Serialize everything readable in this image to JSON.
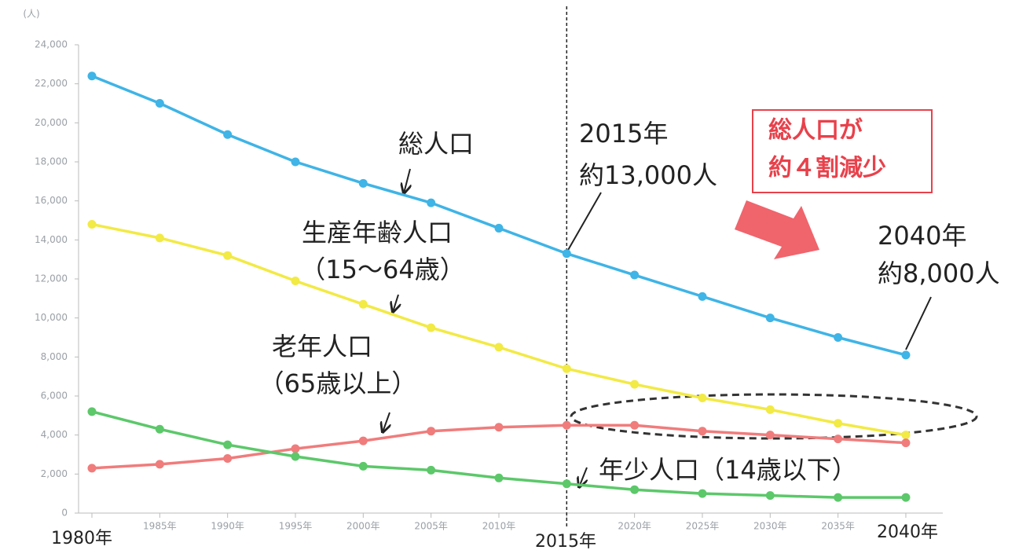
{
  "chart_data": {
    "type": "line",
    "y_unit": "(人)",
    "categories": [
      "1980年",
      "1985年",
      "1990年",
      "1995年",
      "2000年",
      "2005年",
      "2010年",
      "2015年",
      "2020年",
      "2025年",
      "2030年",
      "2035年",
      "2040年"
    ],
    "series": [
      {
        "name": "総人口",
        "color": "#3fb4e6",
        "values": [
          22400,
          21000,
          19400,
          18000,
          16900,
          15900,
          14600,
          13300,
          12200,
          11100,
          10000,
          9000,
          8100
        ]
      },
      {
        "name": "生産年齢人口",
        "color": "#f2ea45",
        "values": [
          14800,
          14100,
          13200,
          11900,
          10700,
          9500,
          8500,
          7400,
          6600,
          5900,
          5300,
          4600,
          4000
        ]
      },
      {
        "name": "老年人口",
        "color": "#f07c7c",
        "values": [
          2300,
          2500,
          2800,
          3300,
          3700,
          4200,
          4400,
          4500,
          4500,
          4200,
          4000,
          3800,
          3600
        ]
      },
      {
        "name": "年少人口（14歳以下）",
        "color": "#5cc86a",
        "values": [
          5200,
          4300,
          3500,
          2900,
          2400,
          2200,
          1800,
          1500,
          1200,
          1000,
          900,
          800,
          800
        ]
      }
    ],
    "annotations": [
      "（15～64歳）",
      "（65歳以上）",
      "2015年",
      "約13,000人",
      "2040年",
      "約8,000人",
      "総人口が",
      "約４割減少"
    ],
    "ylim": [
      0,
      24000
    ],
    "yticks": [
      0,
      {
        "value": 2000,
        "label": "2,000"
      },
      {
        "value": 4000,
        "label": "4,000"
      },
      {
        "value": 6000,
        "label": "6,000"
      },
      {
        "value": 8000,
        "label": "8,000"
      },
      {
        "value": 10000,
        "label": "10,000"
      },
      {
        "value": 12000,
        "label": "12,000"
      },
      {
        "value": 14000,
        "label": "14,000"
      },
      {
        "value": 16000,
        "label": "16,000"
      },
      {
        "value": 18000,
        "label": "18,000"
      },
      {
        "value": 20000,
        "label": "20,000"
      },
      {
        "value": 22000,
        "label": "22,000"
      },
      {
        "value": 24000,
        "label": "24,000"
      }
    ]
  }
}
